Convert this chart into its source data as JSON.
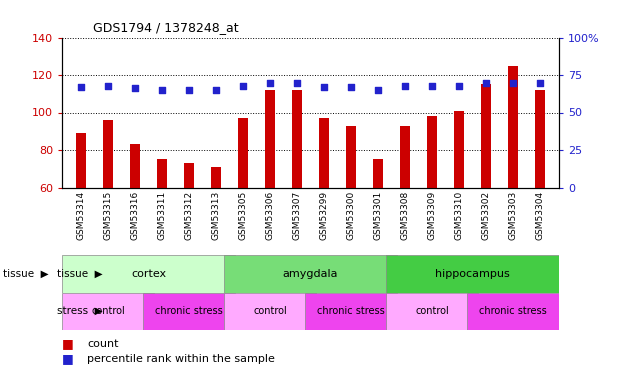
{
  "title": "GDS1794 / 1378248_at",
  "samples": [
    "GSM53314",
    "GSM53315",
    "GSM53316",
    "GSM53311",
    "GSM53312",
    "GSM53313",
    "GSM53305",
    "GSM53306",
    "GSM53307",
    "GSM53299",
    "GSM53300",
    "GSM53301",
    "GSM53308",
    "GSM53309",
    "GSM53310",
    "GSM53302",
    "GSM53303",
    "GSM53304"
  ],
  "counts": [
    89,
    96,
    83,
    75,
    73,
    71,
    97,
    112,
    112,
    97,
    93,
    75,
    93,
    98,
    101,
    115,
    125,
    112
  ],
  "percentiles": [
    67,
    68,
    66,
    65,
    65,
    65,
    68,
    70,
    70,
    67,
    67,
    65,
    68,
    68,
    68,
    70,
    70,
    70
  ],
  "ylim_left": [
    60,
    140
  ],
  "ylim_right": [
    0,
    100
  ],
  "yticks_left": [
    60,
    80,
    100,
    120,
    140
  ],
  "yticks_right": [
    0,
    25,
    50,
    75,
    100
  ],
  "bar_color": "#cc0000",
  "dot_color": "#2222cc",
  "bg_color": "#ffffff",
  "tissue_groups": [
    {
      "label": "cortex",
      "start": 0,
      "end": 6,
      "color": "#ccffcc"
    },
    {
      "label": "amygdala",
      "start": 6,
      "end": 12,
      "color": "#66dd66"
    },
    {
      "label": "hippocampus",
      "start": 12,
      "end": 18,
      "color": "#44cc44"
    }
  ],
  "stress_groups": [
    {
      "label": "control",
      "start": 0,
      "end": 3,
      "color": "#ffaaff"
    },
    {
      "label": "chronic stress",
      "start": 3,
      "end": 6,
      "color": "#ee44ee"
    },
    {
      "label": "control",
      "start": 6,
      "end": 9,
      "color": "#ffaaff"
    },
    {
      "label": "chronic stress",
      "start": 9,
      "end": 12,
      "color": "#ee44ee"
    },
    {
      "label": "control",
      "start": 12,
      "end": 15,
      "color": "#ffaaff"
    },
    {
      "label": "chronic stress",
      "start": 15,
      "end": 18,
      "color": "#ee44ee"
    }
  ],
  "xticklabels_bg": "#cccccc",
  "legend_count_color": "#cc0000",
  "legend_dot_color": "#2222cc",
  "tissue_label": "tissue",
  "stress_label": "stress",
  "bar_width": 0.4
}
